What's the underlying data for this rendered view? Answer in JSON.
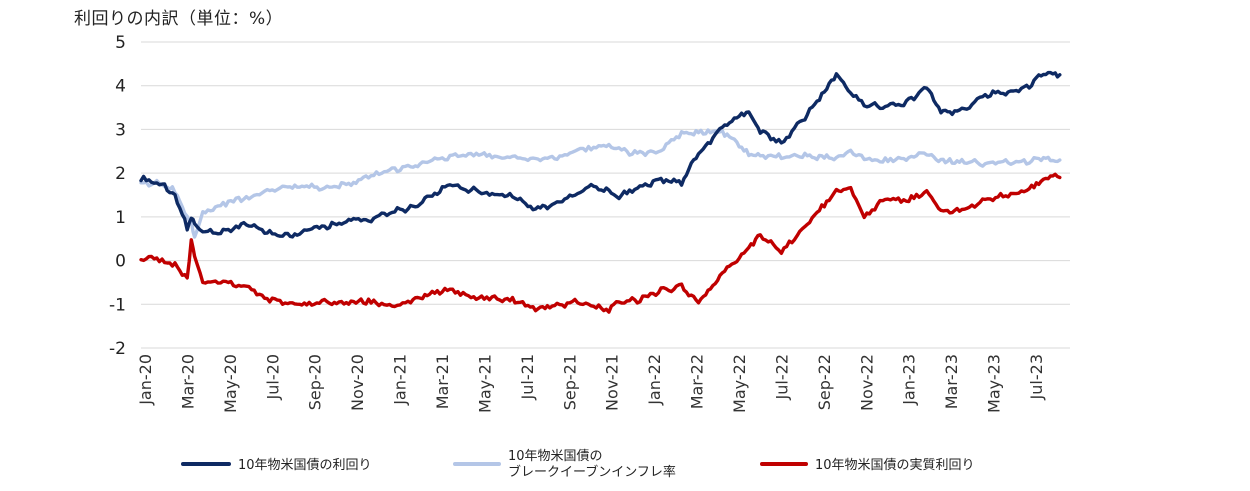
{
  "chart_data": {
    "type": "line",
    "title": "利回りの内訳（単位：%）",
    "ylim": [
      -2,
      5
    ],
    "yticks": [
      "5",
      "4",
      "3",
      "2",
      "1",
      "0",
      "-1",
      "-2"
    ],
    "grid": true,
    "legend_position": "bottom",
    "x_tick_labels": [
      "Jan-20",
      "Mar-20",
      "May-20",
      "Jul-20",
      "Sep-20",
      "Nov-20",
      "Jan-21",
      "Mar-21",
      "May-21",
      "Jul-21",
      "Sep-21",
      "Nov-21",
      "Jan-22",
      "Mar-22",
      "May-22",
      "Jul-22",
      "Sep-22",
      "Nov-22",
      "Jan-23",
      "Mar-23",
      "May-23",
      "Jul-23"
    ],
    "x": [
      "2020-01-01",
      "2020-02-01",
      "2020-02-20",
      "2020-03-09",
      "2020-03-15",
      "2020-03-20",
      "2020-04-01",
      "2020-05-01",
      "2020-06-08",
      "2020-07-01",
      "2020-08-04",
      "2020-09-01",
      "2020-10-01",
      "2020-11-09",
      "2020-12-01",
      "2021-01-01",
      "2021-02-01",
      "2021-03-01",
      "2021-03-31",
      "2021-05-01",
      "2021-06-01",
      "2021-07-01",
      "2021-08-04",
      "2021-09-01",
      "2021-10-01",
      "2021-10-21",
      "2021-11-20",
      "2021-12-01",
      "2022-01-01",
      "2022-02-01",
      "2022-03-07",
      "2022-04-01",
      "2022-05-06",
      "2022-06-14",
      "2022-07-01",
      "2022-08-01",
      "2022-09-01",
      "2022-10-21",
      "2022-11-11",
      "2022-12-01",
      "2023-01-01",
      "2023-02-01",
      "2023-03-03",
      "2023-03-24",
      "2023-04-06",
      "2023-05-01",
      "2023-06-01",
      "2023-07-01",
      "2023-08-01",
      "2023-08-22",
      "2023-09-15"
    ],
    "series": [
      {
        "name": "10年物米国債の利回り",
        "color": "#0e2a63",
        "values": [
          1.88,
          1.75,
          1.52,
          0.74,
          0.98,
          0.85,
          0.65,
          0.65,
          0.85,
          0.66,
          0.55,
          0.7,
          0.77,
          0.95,
          0.92,
          1.1,
          1.2,
          1.45,
          1.72,
          1.62,
          1.5,
          1.48,
          1.18,
          1.3,
          1.52,
          1.68,
          1.6,
          1.45,
          1.63,
          1.85,
          1.78,
          2.45,
          3.05,
          3.45,
          2.95,
          2.7,
          3.2,
          4.25,
          3.85,
          3.6,
          3.5,
          3.6,
          4.0,
          3.4,
          3.35,
          3.5,
          3.8,
          3.85,
          4.0,
          4.3,
          4.25
        ]
      },
      {
        "name": "10年物米国債のブレークイーブンインフレ率",
        "color": "#b4c6e7",
        "values": [
          1.8,
          1.75,
          1.6,
          1.0,
          0.9,
          0.5,
          1.1,
          1.3,
          1.45,
          1.6,
          1.7,
          1.7,
          1.65,
          1.8,
          1.9,
          2.05,
          2.15,
          2.3,
          2.38,
          2.45,
          2.38,
          2.35,
          2.3,
          2.35,
          2.5,
          2.55,
          2.65,
          2.55,
          2.45,
          2.5,
          2.9,
          2.95,
          2.95,
          2.45,
          2.4,
          2.4,
          2.4,
          2.35,
          2.55,
          2.3,
          2.3,
          2.32,
          2.45,
          2.28,
          2.3,
          2.25,
          2.22,
          2.25,
          2.25,
          2.35,
          2.3
        ]
      },
      {
        "name": "10年物米国債の実質利回り",
        "color": "#c00000",
        "values": [
          0.08,
          0.0,
          -0.1,
          -0.4,
          0.5,
          0.1,
          -0.45,
          -0.5,
          -0.6,
          -0.85,
          -1.0,
          -1.0,
          -0.95,
          -0.95,
          -0.95,
          -1.0,
          -0.95,
          -0.75,
          -0.65,
          -0.85,
          -0.85,
          -0.9,
          -1.1,
          -1.05,
          -0.95,
          -1.02,
          -1.15,
          -0.95,
          -0.9,
          -0.7,
          -0.6,
          -0.95,
          -0.3,
          0.3,
          0.6,
          0.2,
          0.7,
          1.6,
          1.65,
          1.0,
          1.45,
          1.35,
          1.6,
          1.15,
          1.1,
          1.2,
          1.4,
          1.5,
          1.6,
          1.9,
          1.9
        ]
      }
    ]
  }
}
